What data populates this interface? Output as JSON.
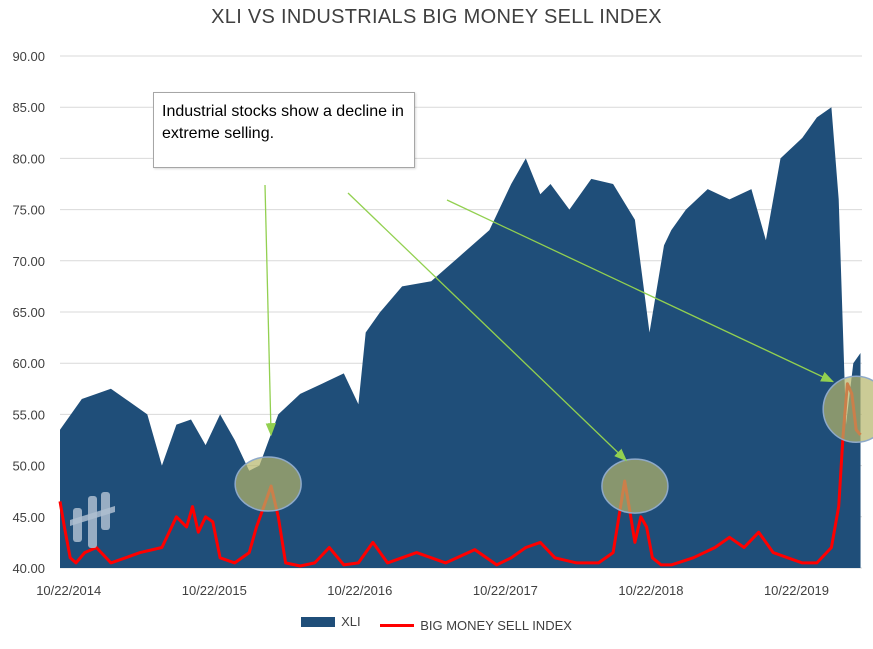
{
  "chart_data": {
    "type": "area",
    "title": "XLI VS INDUSTRIALS BIG MONEY SELL INDEX",
    "ylim": [
      40,
      90
    ],
    "yticks": [
      "90.00",
      "85.00",
      "80.00",
      "75.00",
      "70.00",
      "65.00",
      "60.00",
      "55.00",
      "50.00",
      "45.00",
      "40.00"
    ],
    "xticks": [
      "10/22/2014",
      "10/22/2015",
      "10/22/2016",
      "10/22/2017",
      "10/22/2018",
      "10/22/2019"
    ],
    "grid": true,
    "legend_position": "bottom",
    "series": [
      {
        "name": "XLI",
        "type": "area",
        "color": "#1f4e79",
        "x": [
          2014.75,
          2014.9,
          2015.0,
          2015.1,
          2015.2,
          2015.35,
          2015.45,
          2015.55,
          2015.65,
          2015.75,
          2015.85,
          2015.95,
          2016.05,
          2016.12,
          2016.25,
          2016.4,
          2016.55,
          2016.7,
          2016.8,
          2016.85,
          2016.95,
          2017.1,
          2017.3,
          2017.5,
          2017.7,
          2017.85,
          2017.95,
          2018.05,
          2018.12,
          2018.25,
          2018.4,
          2018.55,
          2018.7,
          2018.8,
          2018.9,
          2018.95,
          2019.05,
          2019.2,
          2019.35,
          2019.5,
          2019.6,
          2019.7,
          2019.85,
          2019.95,
          2020.05,
          2020.1,
          2020.15,
          2020.2,
          2020.25
        ],
        "values": [
          53.5,
          56.5,
          57.0,
          57.5,
          56.5,
          55.0,
          50.0,
          54.0,
          54.5,
          52.0,
          55.0,
          52.5,
          49.5,
          50.0,
          55.0,
          57.0,
          58.0,
          59.0,
          56.0,
          63.0,
          65.0,
          67.5,
          68.0,
          70.5,
          73.0,
          77.5,
          80.0,
          76.5,
          77.5,
          75.0,
          78.0,
          77.5,
          74.0,
          63.0,
          71.5,
          73.0,
          75.0,
          77.0,
          76.0,
          77.0,
          72.0,
          80.0,
          82.0,
          84.0,
          85.0,
          76.0,
          54.0,
          60.0,
          61.0
        ]
      },
      {
        "name": "BIG MONEY SELL INDEX",
        "type": "line",
        "color": "#ff0000",
        "x": [
          2014.75,
          2014.78,
          2014.82,
          2014.86,
          2014.92,
          2015.0,
          2015.1,
          2015.2,
          2015.3,
          2015.45,
          2015.55,
          2015.62,
          2015.66,
          2015.7,
          2015.75,
          2015.8,
          2015.85,
          2015.95,
          2016.05,
          2016.1,
          2016.15,
          2016.2,
          2016.25,
          2016.3,
          2016.4,
          2016.5,
          2016.6,
          2016.7,
          2016.8,
          2016.9,
          2017.0,
          2017.2,
          2017.4,
          2017.6,
          2017.75,
          2017.85,
          2017.95,
          2018.05,
          2018.15,
          2018.3,
          2018.45,
          2018.55,
          2018.63,
          2018.66,
          2018.7,
          2018.74,
          2018.78,
          2018.82,
          2018.88,
          2018.95,
          2019.1,
          2019.25,
          2019.35,
          2019.45,
          2019.55,
          2019.65,
          2019.75,
          2019.85,
          2019.95,
          2020.05,
          2020.1,
          2020.13,
          2020.16,
          2020.19,
          2020.22,
          2020.25
        ],
        "values": [
          46.5,
          44.0,
          41.0,
          40.5,
          41.5,
          42.0,
          40.5,
          41.0,
          41.5,
          42.0,
          45.0,
          44.0,
          46.0,
          43.5,
          45.0,
          44.5,
          41.0,
          40.5,
          41.5,
          44.0,
          46.0,
          48.0,
          45.0,
          40.5,
          40.2,
          40.5,
          42.0,
          40.3,
          40.5,
          42.5,
          40.5,
          41.5,
          40.5,
          41.8,
          40.3,
          41.0,
          42.0,
          42.5,
          41.0,
          40.5,
          40.5,
          41.5,
          48.5,
          46.0,
          42.5,
          45.0,
          44.0,
          41.0,
          40.3,
          40.3,
          41.0,
          42.0,
          43.0,
          42.0,
          43.5,
          41.5,
          41.0,
          40.5,
          40.5,
          42.0,
          46.0,
          53.0,
          58.0,
          57.0,
          53.5,
          53.0
        ]
      }
    ],
    "annotation": {
      "text": "Industrial stocks show a decline in extreme selling.",
      "arrow_color": "#92d050",
      "highlight_fill": "#8c8c4c"
    }
  },
  "legend": {
    "xli_label": "XLI",
    "sell_label": "BIG MONEY SELL INDEX"
  }
}
